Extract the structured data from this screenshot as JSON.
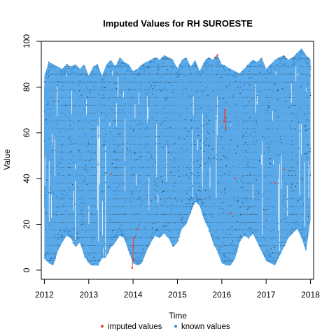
{
  "chart_data": {
    "type": "line",
    "title": "Imputed Values for  RH SUROESTE",
    "xlabel": "Time",
    "ylabel": "Value",
    "xlim": [
      2011.93,
      2018.07
    ],
    "ylim": [
      -4,
      100
    ],
    "x_ticks": [
      "2012",
      "2013",
      "2014",
      "2015",
      "2016",
      "2017",
      "2018"
    ],
    "y_ticks": [
      "0",
      "20",
      "40",
      "60",
      "80",
      "100"
    ],
    "grid": false,
    "legend_position": "bottom-center",
    "series": [
      {
        "name": "known values",
        "color": "#5aa9e8",
        "marker_color": "#3b8fd8",
        "x": [
          2012.0,
          2012.1,
          2012.2,
          2012.3,
          2012.4,
          2012.5,
          2012.6,
          2012.7,
          2012.8,
          2012.9,
          2013.0,
          2013.1,
          2013.2,
          2013.3,
          2013.4,
          2013.5,
          2013.6,
          2013.7,
          2013.8,
          2013.9,
          2014.0,
          2014.1,
          2014.2,
          2014.3,
          2014.4,
          2014.5,
          2014.6,
          2014.7,
          2014.8,
          2014.9,
          2015.0,
          2015.1,
          2015.2,
          2015.3,
          2015.4,
          2015.5,
          2015.6,
          2015.7,
          2015.8,
          2015.9,
          2016.0,
          2016.1,
          2016.2,
          2016.3,
          2016.4,
          2016.5,
          2016.6,
          2016.7,
          2016.8,
          2016.9,
          2017.0,
          2017.1,
          2017.2,
          2017.3,
          2017.4,
          2017.5,
          2017.6,
          2017.7,
          2017.8,
          2017.9,
          2018.0
        ],
        "y_max": [
          85,
          91,
          90,
          89,
          88,
          90,
          89,
          90,
          88,
          90,
          85,
          89,
          90,
          85,
          90,
          92,
          89,
          93,
          91,
          90,
          87,
          88,
          90,
          91,
          92,
          93,
          92,
          94,
          93,
          92,
          88,
          92,
          93,
          89,
          92,
          87,
          91,
          93,
          92,
          94,
          90,
          89,
          88,
          87,
          86,
          88,
          90,
          92,
          91,
          93,
          88,
          90,
          92,
          93,
          94,
          92,
          93,
          95,
          97,
          94,
          92
        ],
        "y_min": [
          5,
          3,
          2,
          8,
          12,
          15,
          14,
          10,
          12,
          6,
          3,
          2,
          2,
          5,
          6,
          10,
          12,
          15,
          14,
          8,
          3,
          2,
          3,
          8,
          12,
          15,
          14,
          16,
          14,
          10,
          12,
          18,
          20,
          25,
          30,
          28,
          22,
          18,
          12,
          8,
          3,
          2,
          2,
          5,
          12,
          15,
          14,
          16,
          12,
          8,
          4,
          3,
          2,
          6,
          10,
          14,
          16,
          18,
          14,
          8,
          22
        ]
      },
      {
        "name": "imputed values",
        "color": "#e8433b",
        "points": [
          [
            2013.98,
            1
          ],
          [
            2013.99,
            5
          ],
          [
            2014.0,
            10
          ],
          [
            2014.01,
            14
          ],
          [
            2014.1,
            18
          ],
          [
            2015.85,
            93
          ],
          [
            2015.9,
            94
          ],
          [
            2016.05,
            65
          ],
          [
            2016.07,
            70
          ],
          [
            2016.09,
            62
          ],
          [
            2016.2,
            25
          ],
          [
            2016.3,
            40
          ],
          [
            2017.2,
            38
          ],
          [
            2017.4,
            44
          ],
          [
            2013.5,
            42
          ]
        ]
      }
    ],
    "legend": [
      {
        "label": "imputed values",
        "color": "#e8433b"
      },
      {
        "label": "known values",
        "color": "#3b8fd8"
      }
    ]
  }
}
